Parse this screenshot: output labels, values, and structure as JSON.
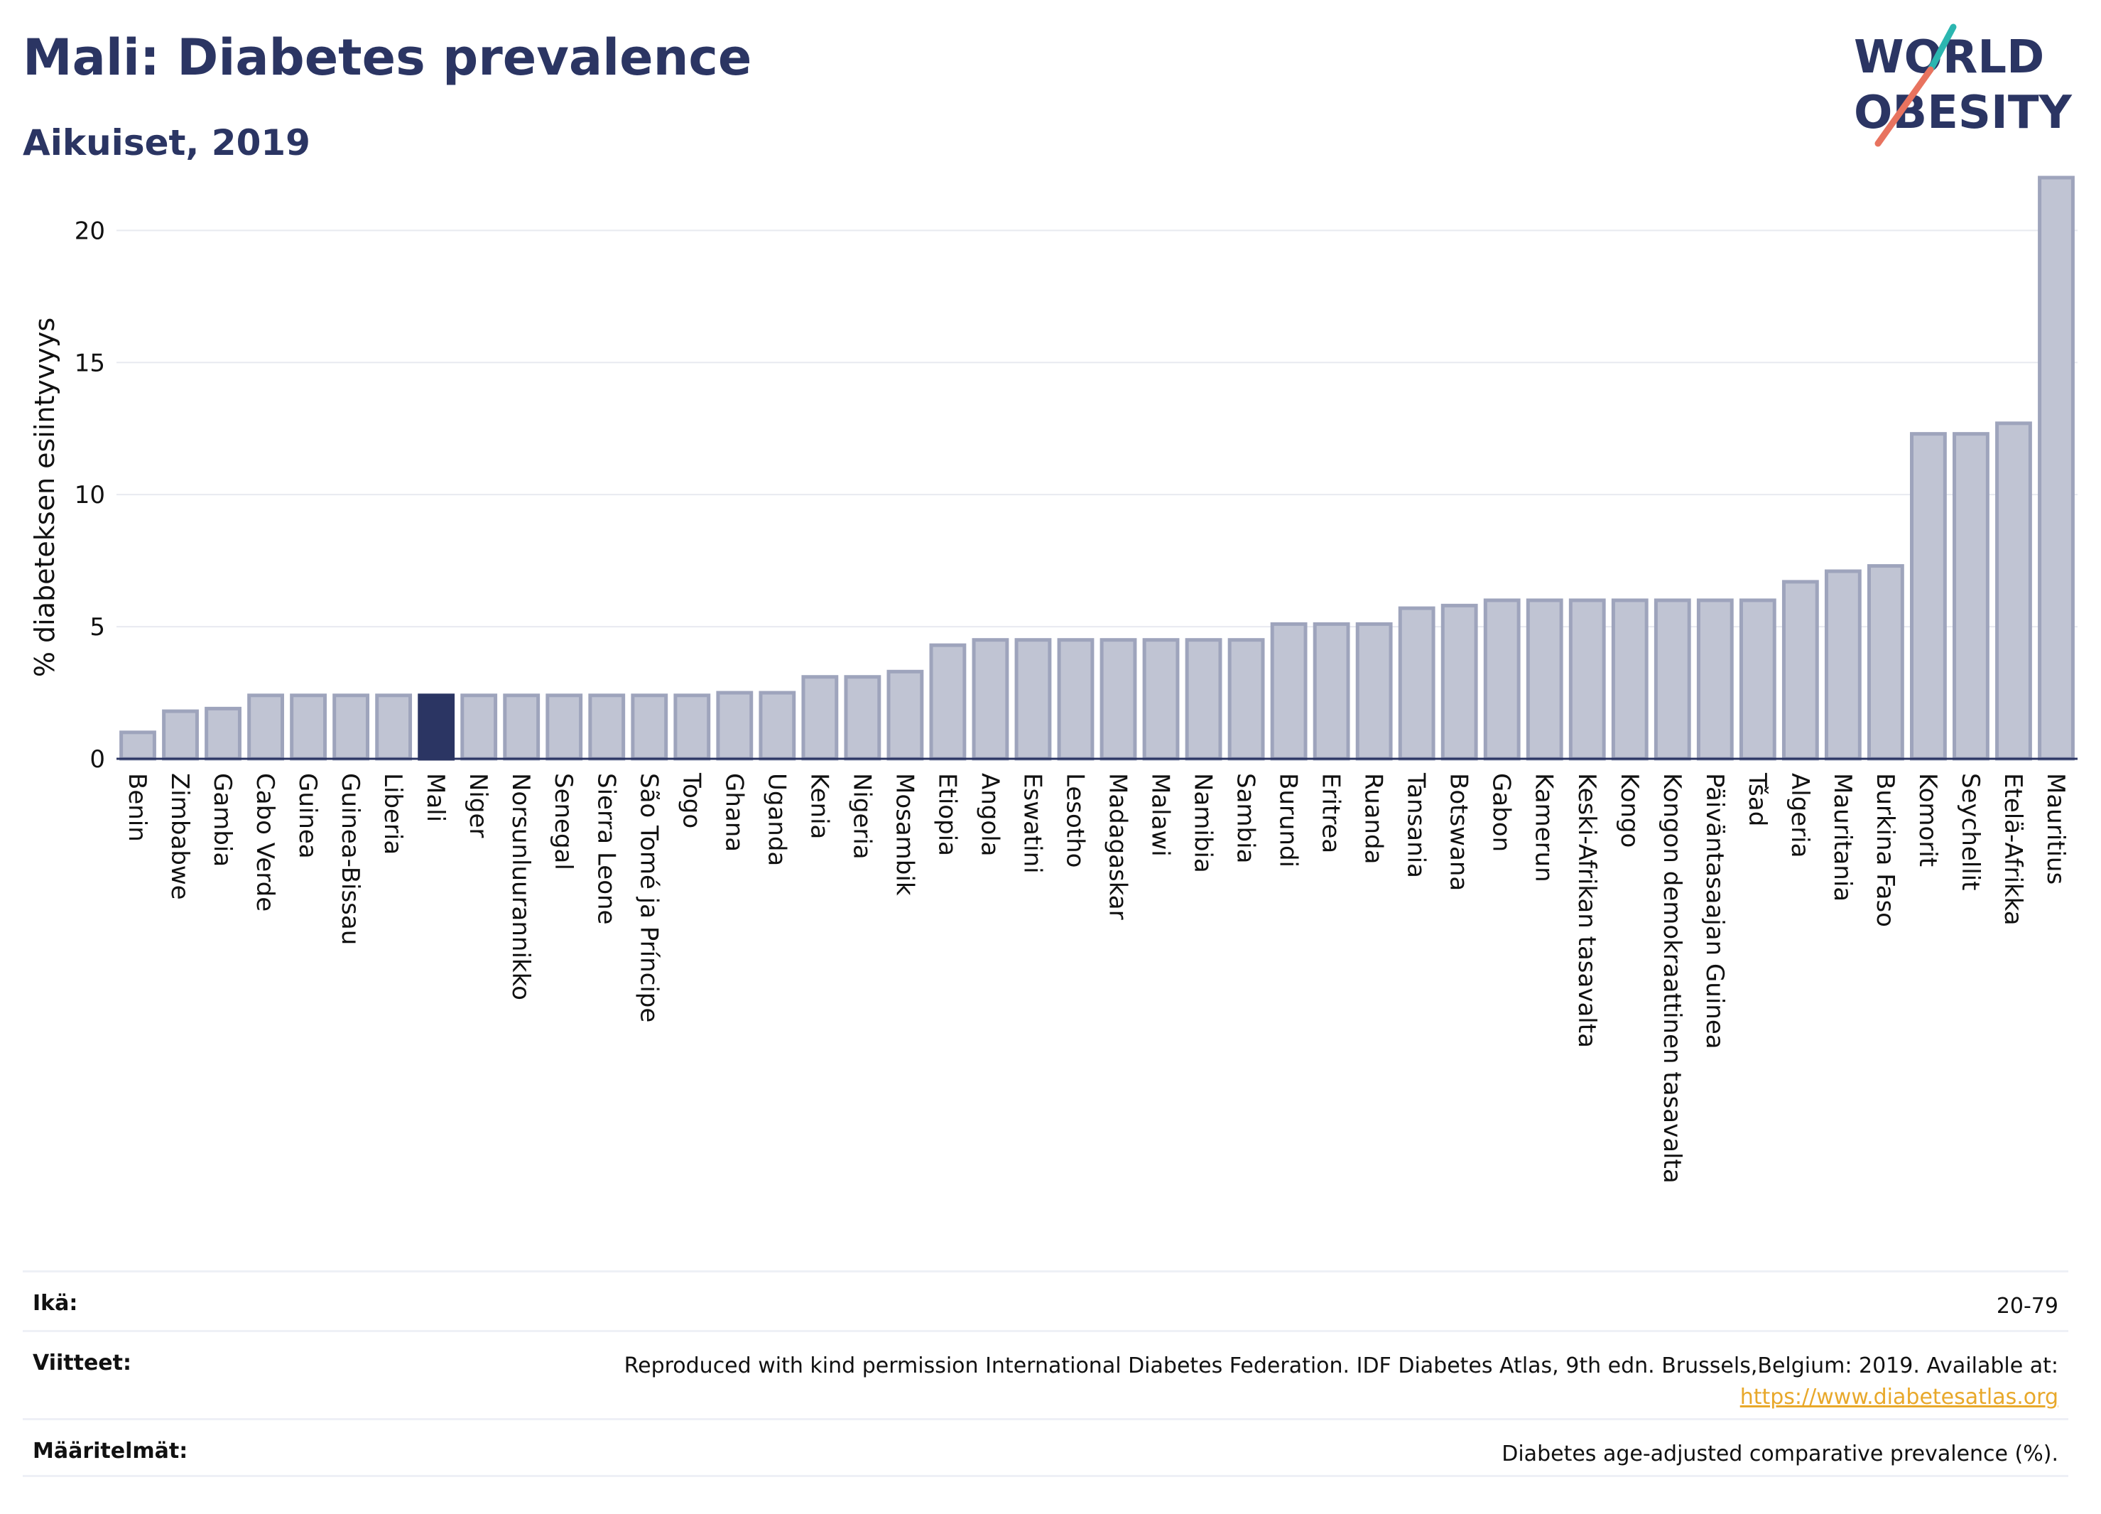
{
  "title": "Mali: Diabetes prevalence",
  "subtitle": "Aikuiset, 2019",
  "logo": {
    "line1": "WORLD",
    "line2": "OBESITY"
  },
  "colors": {
    "brand": "#2b3563",
    "bar_fill": "#c0c4d3",
    "bar_stroke": "#9ea4bc",
    "highlight": "#2b3563",
    "link": "#e8a82a",
    "logo_teal": "#2bb6b0",
    "logo_coral": "#e8735f"
  },
  "chart_data": {
    "type": "bar",
    "ylabel": "% diabeteksen esiintyvyys",
    "ylim": [
      0,
      22
    ],
    "yticks": [
      0,
      5,
      10,
      15,
      20
    ],
    "grid": true,
    "highlight": "Mali",
    "categories": [
      "Benin",
      "Zimbabwe",
      "Gambia",
      "Cabo Verde",
      "Guinea",
      "Guinea-Bissau",
      "Liberia",
      "Mali",
      "Niger",
      "Norsunluurannikko",
      "Senegal",
      "Sierra Leone",
      "São Tomé ja Príncipe",
      "Togo",
      "Ghana",
      "Uganda",
      "Kenia",
      "Nigeria",
      "Mosambik",
      "Etiopia",
      "Angola",
      "Eswatini",
      "Lesotho",
      "Madagaskar",
      "Malawi",
      "Namibia",
      "Sambia",
      "Burundi",
      "Eritrea",
      "Ruanda",
      "Tansania",
      "Botswana",
      "Gabon",
      "Kamerun",
      "Keski-Afrikan tasavalta",
      "Kongo",
      "Kongon demokraattinen tasavalta",
      "Päiväntasaajan Guinea",
      "Tšad",
      "Algeria",
      "Mauritania",
      "Burkina Faso",
      "Komorit",
      "Seychellit",
      "Etelä-Afrikka",
      "Mauritius"
    ],
    "values": [
      1.0,
      1.8,
      1.9,
      2.4,
      2.4,
      2.4,
      2.4,
      2.4,
      2.4,
      2.4,
      2.4,
      2.4,
      2.4,
      2.4,
      2.5,
      2.5,
      3.1,
      3.1,
      3.3,
      4.3,
      4.5,
      4.5,
      4.5,
      4.5,
      4.5,
      4.5,
      4.5,
      5.1,
      5.1,
      5.1,
      5.7,
      5.8,
      6.0,
      6.0,
      6.0,
      6.0,
      6.0,
      6.0,
      6.0,
      6.7,
      7.1,
      7.3,
      12.3,
      12.3,
      12.7,
      22.0
    ]
  },
  "meta": {
    "age_label": "Ikä:",
    "age_value": "20-79",
    "refs_label": "Viitteet:",
    "refs_text": "Reproduced with kind permission International Diabetes Federation. IDF Diabetes Atlas, 9th edn. Brussels,Belgium: 2019. Available at:",
    "refs_link": "https://www.diabetesatlas.org",
    "defs_label": "Määritelmät:",
    "defs_text": "Diabetes age-adjusted comparative prevalence (%)."
  }
}
